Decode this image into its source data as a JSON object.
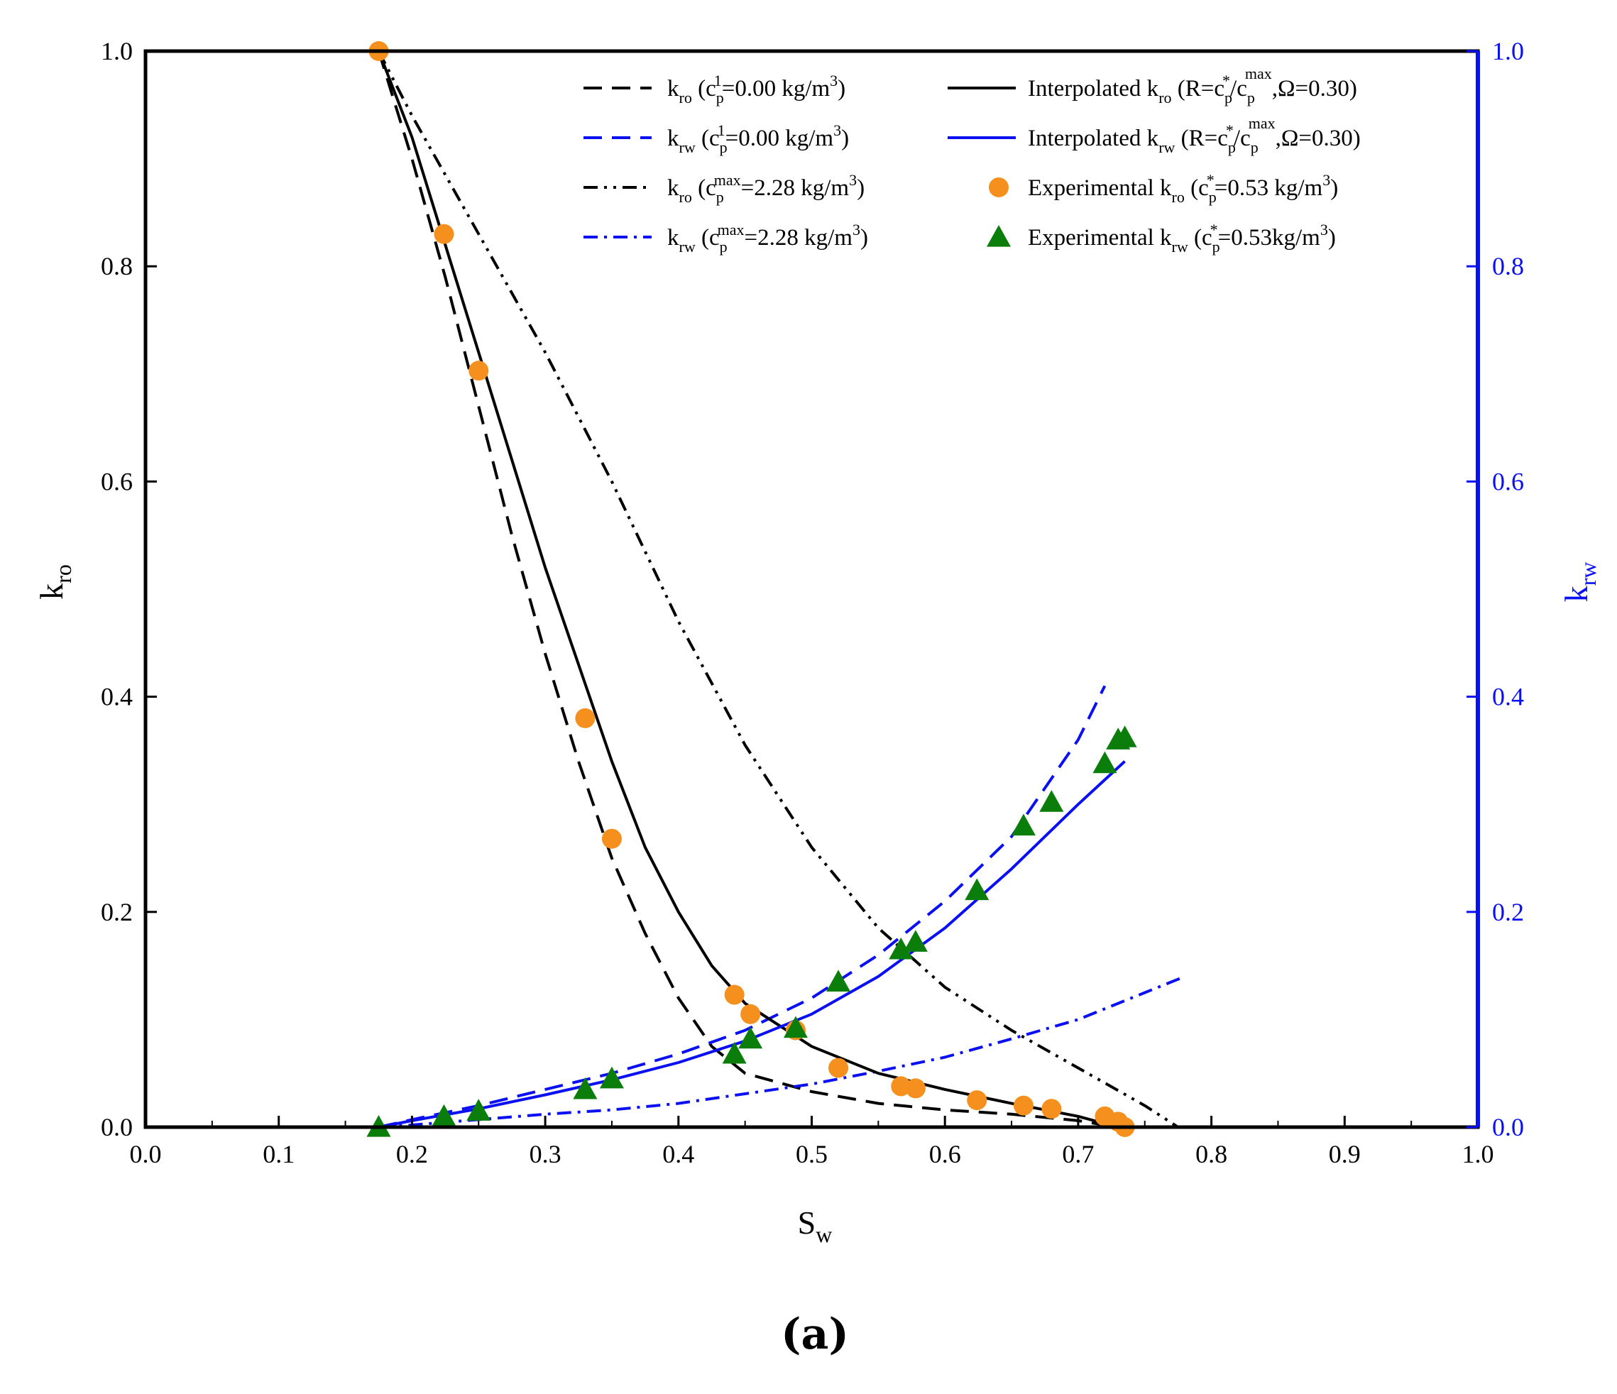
{
  "chart_data": {
    "type": "line",
    "panel_label": "(a)",
    "x_axis": {
      "label": "S",
      "label_sub": "w",
      "range": [
        0.0,
        1.0
      ],
      "ticks": [
        "0.0",
        "0.1",
        "0.2",
        "0.3",
        "0.4",
        "0.5",
        "0.6",
        "0.7",
        "0.8",
        "0.9",
        "1.0"
      ]
    },
    "y_left_axis": {
      "label": "k",
      "label_sub": "ro",
      "range": [
        0.0,
        1.0
      ],
      "ticks": [
        "0.0",
        "0.2",
        "0.4",
        "0.6",
        "0.8",
        "1.0"
      ],
      "color": "#000000"
    },
    "y_right_axis": {
      "label": "k",
      "label_sub": "rw",
      "range": [
        0.0,
        1.0
      ],
      "ticks": [
        "0.0",
        "0.2",
        "0.4",
        "0.6",
        "0.8",
        "1.0"
      ],
      "color": "#0a10f0"
    },
    "colors": {
      "black": "#000000",
      "blue": "#0a10f0",
      "orange": "#f5901e",
      "green": "#0a7d0a"
    },
    "series": [
      {
        "id": "kro_c1",
        "kind": "line",
        "style": "dashed",
        "color": "#000000",
        "legend": {
          "k": "k",
          "ksub": "ro",
          "a": " (c",
          "asub": "p",
          "asup": "1",
          "b": "=0.00 kg/m",
          "bsup": "3",
          "c": ")"
        },
        "x": [
          0.175,
          0.2,
          0.225,
          0.25,
          0.275,
          0.3,
          0.325,
          0.35,
          0.375,
          0.4,
          0.425,
          0.45,
          0.5,
          0.55,
          0.6,
          0.65,
          0.7,
          0.73
        ],
        "y": [
          1.0,
          0.9,
          0.79,
          0.67,
          0.55,
          0.44,
          0.34,
          0.25,
          0.18,
          0.12,
          0.075,
          0.05,
          0.033,
          0.022,
          0.016,
          0.012,
          0.006,
          0.0
        ]
      },
      {
        "id": "krw_c1",
        "kind": "line",
        "style": "dashed",
        "color": "#0a10f0",
        "legend": {
          "k": "k",
          "ksub": "rw",
          "a": " (c",
          "asub": "p",
          "asup": "1",
          "b": "=0.00 kg/m",
          "bsup": "3",
          "c": ")"
        },
        "x": [
          0.175,
          0.2,
          0.25,
          0.3,
          0.35,
          0.4,
          0.45,
          0.5,
          0.55,
          0.6,
          0.65,
          0.7,
          0.72
        ],
        "y": [
          0.0,
          0.007,
          0.02,
          0.035,
          0.05,
          0.068,
          0.09,
          0.12,
          0.16,
          0.21,
          0.27,
          0.36,
          0.41
        ]
      },
      {
        "id": "kro_cmax",
        "kind": "line",
        "style": "dashdotdot",
        "color": "#000000",
        "legend": {
          "k": "k",
          "ksub": "ro",
          "a": " (c",
          "asub": "p",
          "asup": "max",
          "b": "=2.28 kg/m",
          "bsup": "3",
          "c": ")"
        },
        "x": [
          0.175,
          0.2,
          0.25,
          0.3,
          0.35,
          0.4,
          0.45,
          0.5,
          0.55,
          0.6,
          0.65,
          0.7,
          0.75,
          0.775
        ],
        "y": [
          1.0,
          0.94,
          0.83,
          0.72,
          0.6,
          0.47,
          0.355,
          0.26,
          0.185,
          0.13,
          0.09,
          0.055,
          0.02,
          0.0
        ]
      },
      {
        "id": "krw_cmax",
        "kind": "line",
        "style": "dashdot",
        "color": "#0a10f0",
        "legend": {
          "k": "k",
          "ksub": "rw",
          "a": " (c",
          "asub": "p",
          "asup": "max",
          "b": "=2.28 kg/m",
          "bsup": "3",
          "c": ")"
        },
        "x": [
          0.175,
          0.2,
          0.25,
          0.3,
          0.35,
          0.4,
          0.45,
          0.5,
          0.55,
          0.6,
          0.65,
          0.7,
          0.75,
          0.78
        ],
        "y": [
          0.0,
          0.002,
          0.007,
          0.012,
          0.016,
          0.022,
          0.031,
          0.04,
          0.052,
          0.065,
          0.082,
          0.1,
          0.125,
          0.14
        ]
      },
      {
        "id": "kro_interp",
        "kind": "line",
        "style": "solid",
        "color": "#000000",
        "legend": {
          "k": "Interpolated k",
          "ksub": "ro",
          "a": " (R=c",
          "asub": "p",
          "asup": "*",
          "b": "/c",
          "bsub": "p",
          "bsup": "max",
          "c": ",Ω=0.30)"
        },
        "x": [
          0.175,
          0.2,
          0.225,
          0.25,
          0.275,
          0.3,
          0.325,
          0.35,
          0.375,
          0.4,
          0.425,
          0.45,
          0.5,
          0.55,
          0.6,
          0.65,
          0.7,
          0.73
        ],
        "y": [
          1.0,
          0.92,
          0.82,
          0.72,
          0.62,
          0.52,
          0.43,
          0.34,
          0.26,
          0.2,
          0.15,
          0.115,
          0.075,
          0.05,
          0.035,
          0.022,
          0.01,
          0.0
        ]
      },
      {
        "id": "krw_interp",
        "kind": "line",
        "style": "solid",
        "color": "#0a10f0",
        "legend": {
          "k": "Interpolated k",
          "ksub": "rw",
          "a": " (R=c",
          "asub": "p",
          "asup": "*",
          "b": "/c",
          "bsub": "p",
          "bsup": "max",
          "c": ",Ω=0.30)"
        },
        "x": [
          0.175,
          0.2,
          0.25,
          0.3,
          0.35,
          0.4,
          0.45,
          0.5,
          0.55,
          0.6,
          0.65,
          0.7,
          0.735
        ],
        "y": [
          0.0,
          0.006,
          0.017,
          0.03,
          0.044,
          0.06,
          0.08,
          0.105,
          0.14,
          0.185,
          0.24,
          0.3,
          0.34
        ]
      },
      {
        "id": "kro_exp",
        "kind": "scatter",
        "marker": "circle",
        "color": "#f5901e",
        "legend": {
          "k": "Experimental k",
          "ksub": "ro",
          "a": " (c",
          "asub": "p",
          "asup": "*",
          "b": "=0.53 kg/m",
          "bsup": "3",
          "c": ")"
        },
        "x": [
          0.175,
          0.224,
          0.25,
          0.33,
          0.35,
          0.442,
          0.454,
          0.488,
          0.52,
          0.567,
          0.578,
          0.624,
          0.659,
          0.68,
          0.72,
          0.73,
          0.735
        ],
        "y": [
          1.0,
          0.83,
          0.703,
          0.38,
          0.268,
          0.123,
          0.105,
          0.09,
          0.055,
          0.038,
          0.036,
          0.025,
          0.02,
          0.017,
          0.01,
          0.005,
          0.0
        ]
      },
      {
        "id": "krw_exp",
        "kind": "scatter",
        "marker": "triangle",
        "color": "#0a7d0a",
        "legend": {
          "k": "Experimental k",
          "ksub": "rw",
          "a": " (c",
          "asub": "p",
          "asup": "*",
          "b": "=0.53kg/m",
          "bsup": "3",
          "c": ")"
        },
        "x": [
          0.175,
          0.224,
          0.25,
          0.33,
          0.35,
          0.442,
          0.454,
          0.488,
          0.52,
          0.567,
          0.578,
          0.624,
          0.659,
          0.68,
          0.72,
          0.73,
          0.735
        ],
        "y": [
          0.0,
          0.01,
          0.015,
          0.035,
          0.045,
          0.068,
          0.082,
          0.092,
          0.135,
          0.165,
          0.172,
          0.22,
          0.28,
          0.302,
          0.338,
          0.36,
          0.362
        ]
      }
    ]
  }
}
